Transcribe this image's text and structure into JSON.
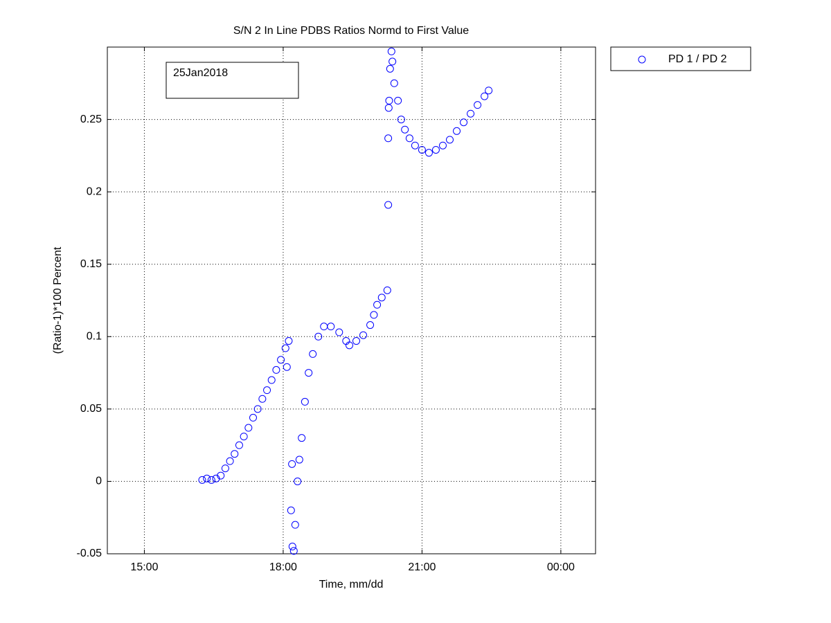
{
  "chart_data": {
    "type": "scatter",
    "title": "S/N 2 In Line PDBS Ratios Normd to First Value",
    "xlabel": "Time, mm/dd",
    "ylabel": "(Ratio-1)*100 Percent",
    "annotation": "25Jan2018",
    "x": [
      16.25,
      16.35,
      16.45,
      16.55,
      16.65,
      16.75,
      16.85,
      16.95,
      17.05,
      17.15,
      17.25,
      17.35,
      17.45,
      17.55,
      17.65,
      17.75,
      17.85,
      17.95,
      18.05,
      18.12,
      18.08,
      18.17,
      18.19,
      18.2,
      18.23,
      18.26,
      18.31,
      18.35,
      18.4,
      18.47,
      18.55,
      18.64,
      18.76,
      18.88,
      19.03,
      19.21,
      19.36,
      19.43,
      19.58,
      19.73,
      19.88,
      19.96,
      20.03,
      20.13,
      20.25,
      20.27,
      20.27,
      20.28,
      20.29,
      20.31,
      20.34,
      20.36,
      20.4,
      20.48,
      20.55,
      20.63,
      20.73,
      20.85,
      21.0,
      21.15,
      21.3,
      21.45,
      21.6,
      21.75,
      21.9,
      22.05,
      22.2,
      22.35,
      22.44
    ],
    "series": [
      {
        "name": "PD 1 / PD 2",
        "color": "#0000ff",
        "values": [
          0.001,
          0.002,
          0.001,
          0.002,
          0.004,
          0.009,
          0.014,
          0.019,
          0.025,
          0.031,
          0.037,
          0.044,
          0.05,
          0.057,
          0.063,
          0.07,
          0.077,
          0.084,
          0.092,
          0.097,
          0.079,
          -0.02,
          0.012,
          -0.045,
          -0.048,
          -0.03,
          0.0,
          0.015,
          0.03,
          0.055,
          0.075,
          0.088,
          0.1,
          0.107,
          0.107,
          0.103,
          0.097,
          0.094,
          0.097,
          0.101,
          0.108,
          0.115,
          0.122,
          0.127,
          0.132,
          0.191,
          0.237,
          0.258,
          0.263,
          0.285,
          0.297,
          0.29,
          0.275,
          0.263,
          0.25,
          0.243,
          0.237,
          0.232,
          0.229,
          0.227,
          0.229,
          0.232,
          0.236,
          0.242,
          0.248,
          0.254,
          0.26,
          0.266,
          0.27
        ]
      }
    ],
    "xlim": [
      14.2,
      24.75
    ],
    "xticks": [
      {
        "value": 15,
        "label": "15:00"
      },
      {
        "value": 18,
        "label": "18:00"
      },
      {
        "value": 21,
        "label": "21:00"
      },
      {
        "value": 24,
        "label": "00:00"
      }
    ],
    "ylim": [
      -0.05,
      0.3
    ],
    "yticks": [
      -0.05,
      0,
      0.05,
      0.1,
      0.15,
      0.2,
      0.25
    ],
    "grid": true,
    "legend": "outside-top-right"
  }
}
